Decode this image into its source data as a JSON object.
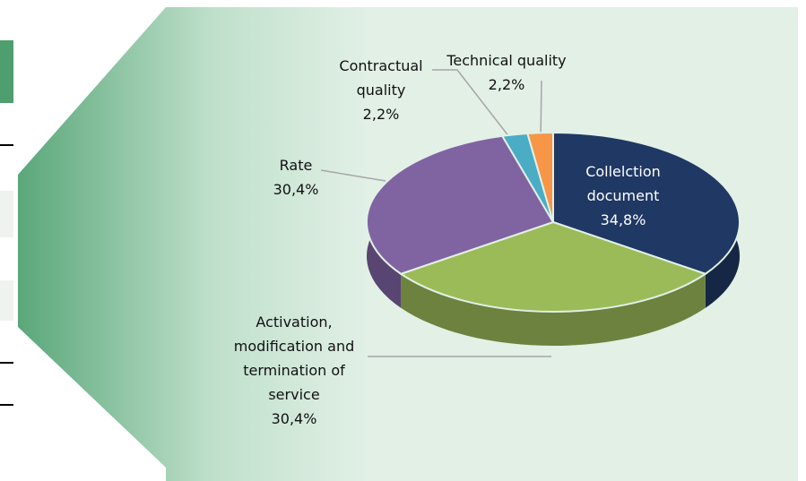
{
  "chart_data": {
    "type": "pie",
    "categories": [
      "Collelction document",
      "Activation, modification and termination of service",
      "Rate",
      "Contractual quality",
      "Technical quality"
    ],
    "values": [
      34.8,
      30.4,
      30.4,
      2.2,
      2.2
    ],
    "value_labels": [
      "34,8%",
      "30,4%",
      "30,4%",
      "2,2%",
      "2,2%"
    ],
    "colors": [
      "#1f3864",
      "#9bbb59",
      "#8064a2",
      "#4bacc6",
      "#f79646"
    ]
  }
}
